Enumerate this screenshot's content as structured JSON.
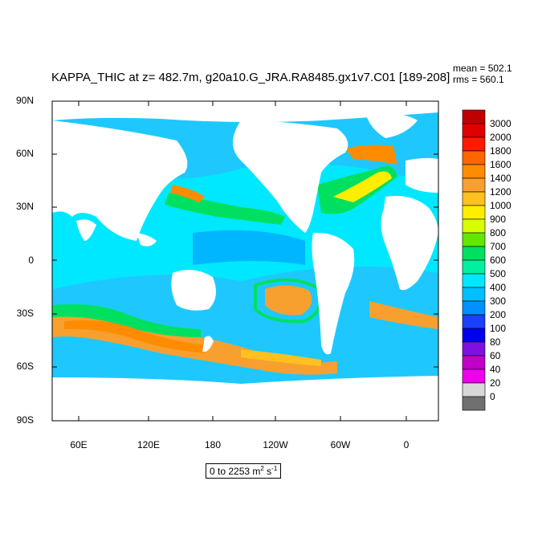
{
  "title": "KAPPA_THIC at z= 482.7m, g20a10.G_JRA.RA8485.gx1v7.C01 [189-208]",
  "stats": {
    "mean": "mean = 502.1",
    "rms": "rms = 560.1"
  },
  "lat_labels": [
    "90N",
    "60N",
    "30N",
    "0",
    "30S",
    "60S",
    "90S"
  ],
  "lon_labels": [
    "60E",
    "120E",
    "180",
    "120W",
    "60W",
    "0"
  ],
  "units": {
    "range": "0 to 2253 m",
    "sup1": "2",
    "mid": " s",
    "sup2": "-1"
  },
  "colorbar": {
    "labels": [
      "3000",
      "2000",
      "1800",
      "1600",
      "1400",
      "1200",
      "1000",
      "900",
      "800",
      "700",
      "600",
      "500",
      "400",
      "300",
      "200",
      "100",
      "80",
      "60",
      "40",
      "20",
      "0"
    ],
    "colors": [
      "#c00000",
      "#e00000",
      "#ff1a00",
      "#ff6600",
      "#ff8c00",
      "#f7a030",
      "#ffc020",
      "#ffee00",
      "#d8ff00",
      "#60e800",
      "#00e060",
      "#00f0a0",
      "#00e8ff",
      "#00c0ff",
      "#0090ff",
      "#1a40ff",
      "#0000f0",
      "#8010e0",
      "#c000c8",
      "#ee00ee",
      "#d8d8d8",
      "#707070"
    ]
  }
}
